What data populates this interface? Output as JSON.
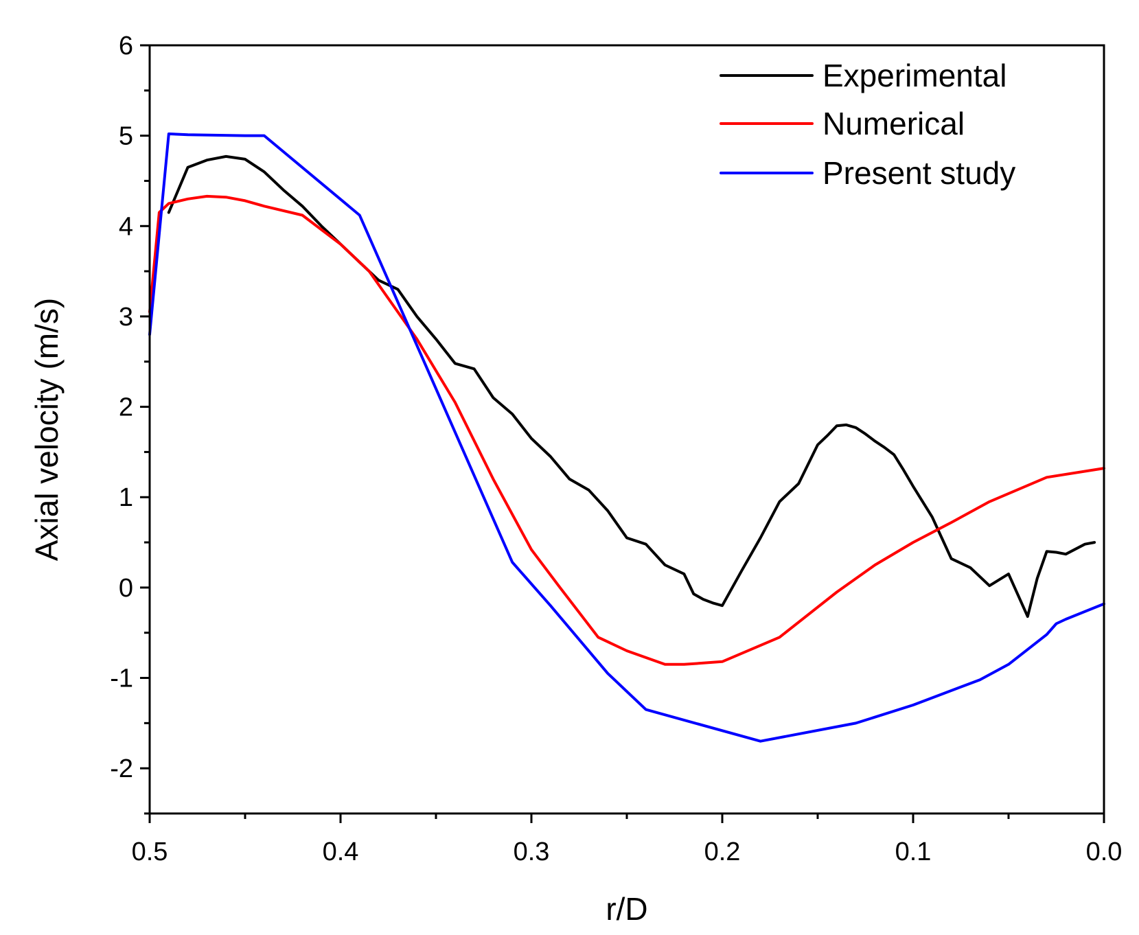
{
  "chart_data": {
    "type": "line",
    "title": "",
    "xlabel": "r/D",
    "ylabel": "Axial velocity (m/s)",
    "xlim": [
      0.5,
      0.0
    ],
    "ylim": [
      -2.5,
      6
    ],
    "x_major_ticks": [
      0.5,
      0.4,
      0.3,
      0.2,
      0.1,
      0.0
    ],
    "x_tick_labels": [
      "0.5",
      "0.4",
      "0.3",
      "0.2",
      "0.1",
      "0.0"
    ],
    "x_minor_ticks": [
      0.45,
      0.35,
      0.25,
      0.15,
      0.05
    ],
    "y_major_ticks": [
      6,
      5,
      4,
      3,
      2,
      1,
      0,
      -1,
      -2
    ],
    "y_tick_labels": [
      "6",
      "5",
      "4",
      "3",
      "2",
      "1",
      "0",
      "-1",
      "-2"
    ],
    "y_minor_ticks": [
      5.5,
      4.5,
      3.5,
      2.5,
      1.5,
      0.5,
      -0.5,
      -1.5,
      -2.5
    ],
    "grid": false,
    "legend_position": "top-right",
    "series": [
      {
        "name": "Experimental",
        "color": "#000000",
        "x": [
          0.49,
          0.48,
          0.47,
          0.46,
          0.45,
          0.44,
          0.43,
          0.42,
          0.41,
          0.4,
          0.39,
          0.38,
          0.37,
          0.365,
          0.36,
          0.35,
          0.34,
          0.33,
          0.32,
          0.31,
          0.3,
          0.29,
          0.28,
          0.27,
          0.26,
          0.25,
          0.24,
          0.23,
          0.22,
          0.215,
          0.21,
          0.205,
          0.2,
          0.19,
          0.18,
          0.17,
          0.16,
          0.15,
          0.145,
          0.14,
          0.135,
          0.13,
          0.125,
          0.12,
          0.115,
          0.11,
          0.105,
          0.1,
          0.095,
          0.09,
          0.085,
          0.08,
          0.07,
          0.06,
          0.05,
          0.04,
          0.035,
          0.03,
          0.025,
          0.02,
          0.01,
          0.005
        ],
        "values": [
          4.15,
          4.65,
          4.73,
          4.77,
          4.74,
          4.6,
          4.4,
          4.22,
          4.0,
          3.8,
          3.6,
          3.4,
          3.3,
          3.15,
          3.0,
          2.75,
          2.48,
          2.42,
          2.1,
          1.92,
          1.65,
          1.45,
          1.2,
          1.08,
          0.85,
          0.55,
          0.48,
          0.25,
          0.15,
          -0.07,
          -0.13,
          -0.17,
          -0.2,
          0.18,
          0.55,
          0.95,
          1.15,
          1.58,
          1.68,
          1.79,
          1.8,
          1.77,
          1.7,
          1.62,
          1.55,
          1.47,
          1.3,
          1.12,
          0.95,
          0.78,
          0.55,
          0.32,
          0.22,
          0.02,
          0.15,
          -0.32,
          0.1,
          0.4,
          0.39,
          0.37,
          0.48,
          0.5
        ]
      },
      {
        "name": "Numerical",
        "color": "#ff0000",
        "x": [
          0.5,
          0.495,
          0.49,
          0.48,
          0.47,
          0.46,
          0.45,
          0.44,
          0.42,
          0.4,
          0.385,
          0.36,
          0.34,
          0.32,
          0.3,
          0.285,
          0.265,
          0.25,
          0.23,
          0.22,
          0.2,
          0.17,
          0.14,
          0.12,
          0.1,
          0.08,
          0.06,
          0.03,
          0.0
        ],
        "values": [
          3.05,
          4.15,
          4.25,
          4.3,
          4.33,
          4.32,
          4.28,
          4.22,
          4.12,
          3.8,
          3.5,
          2.75,
          2.05,
          1.2,
          0.42,
          0.0,
          -0.55,
          -0.7,
          -0.85,
          -0.85,
          -0.82,
          -0.55,
          -0.05,
          0.25,
          0.5,
          0.72,
          0.95,
          1.22,
          1.32
        ]
      },
      {
        "name": "Present study",
        "color": "#0000ff",
        "x": [
          0.5,
          0.49,
          0.48,
          0.45,
          0.44,
          0.39,
          0.31,
          0.29,
          0.26,
          0.24,
          0.18,
          0.13,
          0.1,
          0.065,
          0.05,
          0.03,
          0.025,
          0.02,
          0.0
        ],
        "values": [
          2.8,
          5.02,
          5.01,
          5.0,
          5.0,
          4.12,
          0.28,
          -0.2,
          -0.95,
          -1.35,
          -1.7,
          -1.5,
          -1.3,
          -1.02,
          -0.85,
          -0.52,
          -0.4,
          -0.35,
          -0.18
        ]
      }
    ]
  }
}
